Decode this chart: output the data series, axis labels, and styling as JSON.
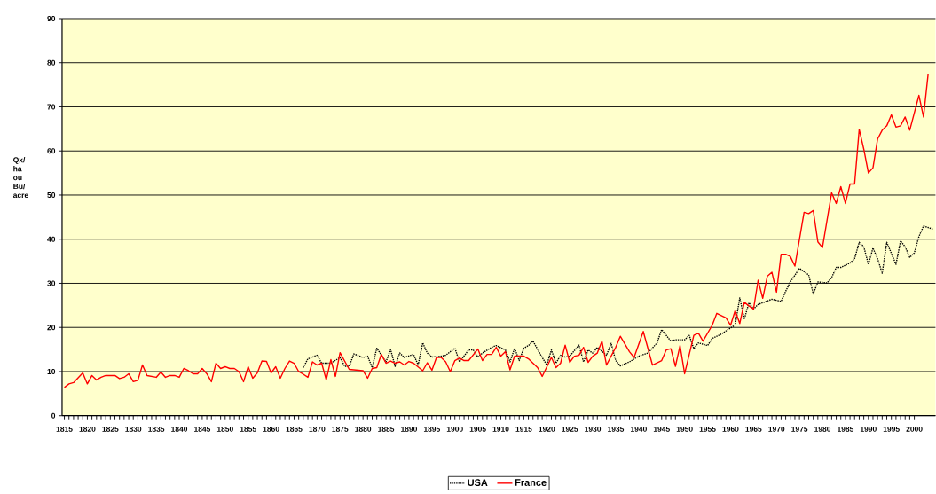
{
  "chart_data": {
    "type": "line",
    "ylabel": "Qx/ ha ou Bu/ acre",
    "xlim": [
      1814.5,
      2004.6
    ],
    "ylim": [
      0,
      90
    ],
    "xticks": [
      1815,
      1820,
      1825,
      1830,
      1835,
      1840,
      1845,
      1850,
      1855,
      1860,
      1865,
      1870,
      1875,
      1880,
      1885,
      1890,
      1895,
      1900,
      1905,
      1910,
      1915,
      1920,
      1925,
      1930,
      1935,
      1940,
      1945,
      1950,
      1955,
      1960,
      1965,
      1970,
      1975,
      1980,
      1985,
      1990,
      1995,
      2000
    ],
    "yticks": [
      0,
      10,
      20,
      30,
      40,
      50,
      60,
      70,
      80,
      90
    ],
    "grid": "y",
    "legend": "bottom",
    "series": [
      {
        "name": "USA",
        "color": "#000000",
        "line_style": "dotted",
        "x": [
          1867,
          1868,
          1870,
          1871,
          1873,
          1875,
          1876,
          1877,
          1878,
          1880,
          1881,
          1882,
          1883,
          1885,
          1886,
          1887,
          1888,
          1889,
          1891,
          1892,
          1893,
          1894,
          1895,
          1897,
          1898,
          1900,
          1901,
          1903,
          1904,
          1905,
          1906,
          1908,
          1909,
          1911,
          1912,
          1913,
          1914,
          1915,
          1916,
          1917,
          1919,
          1920,
          1921,
          1922,
          1923,
          1924,
          1925,
          1927,
          1928,
          1929,
          1930,
          1931,
          1933,
          1934,
          1935,
          1936,
          1938,
          1940,
          1942,
          1944,
          1945,
          1947,
          1948,
          1950,
          1951,
          1952,
          1953,
          1955,
          1956,
          1958,
          1960,
          1961,
          1962,
          1963,
          1964,
          1965,
          1966,
          1967,
          1969,
          1971,
          1972,
          1973,
          1975,
          1977,
          1978,
          1979,
          1981,
          1982,
          1983,
          1984,
          1986,
          1987,
          1988,
          1989,
          1990,
          1991,
          1992,
          1993,
          1994,
          1996,
          1997,
          1998,
          1999,
          2000,
          2001,
          2002,
          2004
        ],
        "values": [
          10.9,
          12.9,
          13.7,
          11.9,
          11.9,
          13.2,
          11.2,
          11.2,
          14.0,
          13.2,
          13.5,
          10.9,
          15.3,
          12.2,
          15.0,
          11.2,
          14.2,
          13.2,
          13.9,
          11.5,
          16.5,
          14.2,
          13.3,
          13.5,
          13.7,
          15.3,
          12.2,
          14.9,
          14.9,
          13.3,
          14.2,
          15.5,
          15.9,
          14.9,
          12.2,
          15.3,
          12.5,
          15.3,
          15.9,
          16.9,
          13.2,
          11.5,
          14.9,
          11.9,
          13.7,
          13.3,
          13.5,
          16.0,
          12.2,
          14.9,
          14.2,
          15.5,
          13.7,
          16.4,
          12.5,
          11.3,
          12.2,
          13.5,
          14.2,
          16.5,
          19.5,
          16.9,
          17.2,
          17.2,
          18.2,
          15.2,
          16.5,
          15.9,
          17.5,
          18.5,
          19.9,
          20.5,
          26.7,
          21.9,
          25.6,
          24.2,
          25.2,
          25.6,
          26.4,
          25.9,
          28.2,
          30.3,
          33.4,
          31.9,
          27.6,
          30.3,
          30.1,
          31.3,
          33.6,
          33.6,
          34.6,
          35.6,
          39.3,
          38.3,
          34.3,
          38.0,
          35.6,
          32.3,
          39.3,
          34.3,
          39.6,
          38.3,
          35.9,
          36.9,
          40.6,
          43.0,
          42.3
        ]
      },
      {
        "name": "France",
        "color": "#ff0000",
        "line_style": "solid",
        "x": [
          1815,
          1816,
          1817,
          1819,
          1820,
          1821,
          1822,
          1823,
          1824,
          1826,
          1827,
          1828,
          1829,
          1830,
          1831,
          1832,
          1833,
          1835,
          1836,
          1837,
          1838,
          1839,
          1840,
          1841,
          1842,
          1843,
          1844,
          1845,
          1846,
          1847,
          1848,
          1849,
          1850,
          1851,
          1852,
          1853,
          1854,
          1855,
          1856,
          1857,
          1858,
          1859,
          1860,
          1861,
          1862,
          1863,
          1864,
          1865,
          1866,
          1867,
          1868,
          1869,
          1870,
          1871,
          1872,
          1873,
          1874,
          1875,
          1877,
          1878,
          1880,
          1881,
          1882,
          1883,
          1884,
          1885,
          1886,
          1887,
          1888,
          1889,
          1890,
          1891,
          1893,
          1894,
          1895,
          1896,
          1897,
          1898,
          1899,
          1900,
          1901,
          1902,
          1903,
          1905,
          1906,
          1907,
          1908,
          1909,
          1910,
          1911,
          1912,
          1913,
          1915,
          1916,
          1918,
          1919,
          1921,
          1922,
          1923,
          1924,
          1925,
          1926,
          1927,
          1928,
          1929,
          1930,
          1931,
          1932,
          1933,
          1935,
          1936,
          1938,
          1939,
          1941,
          1943,
          1945,
          1946,
          1947,
          1948,
          1949,
          1950,
          1952,
          1953,
          1954,
          1956,
          1957,
          1959,
          1960,
          1961,
          1962,
          1963,
          1964,
          1965,
          1966,
          1967,
          1968,
          1969,
          1970,
          1971,
          1972,
          1973,
          1974,
          1976,
          1977,
          1978,
          1979,
          1980,
          1982,
          1983,
          1984,
          1985,
          1986,
          1987,
          1988,
          1989,
          1990,
          1991,
          1992,
          1993,
          1994,
          1995,
          1996,
          1997,
          1998,
          1999,
          2001,
          2002,
          2003
        ],
        "values": [
          6.4,
          7.2,
          7.5,
          9.7,
          7.2,
          9.1,
          8.1,
          8.7,
          9.1,
          9.1,
          8.4,
          8.7,
          9.5,
          7.7,
          8.0,
          11.5,
          9.1,
          8.7,
          9.9,
          8.7,
          9.1,
          9.1,
          8.7,
          10.7,
          10.2,
          9.5,
          9.5,
          10.7,
          9.5,
          7.7,
          11.9,
          10.7,
          11.1,
          10.7,
          10.7,
          10.0,
          7.7,
          11.1,
          8.5,
          9.7,
          12.4,
          12.3,
          9.7,
          11.1,
          8.5,
          10.7,
          12.4,
          11.9,
          10.0,
          9.4,
          8.7,
          12.2,
          11.5,
          11.9,
          8.1,
          12.7,
          8.9,
          14.3,
          10.5,
          10.4,
          10.2,
          8.5,
          10.7,
          10.9,
          13.9,
          11.9,
          12.4,
          11.9,
          12.2,
          11.5,
          12.3,
          11.9,
          10.2,
          12.0,
          10.3,
          13.2,
          13.2,
          12.2,
          10.0,
          12.5,
          13.1,
          12.5,
          12.5,
          15.1,
          12.5,
          13.9,
          13.9,
          15.5,
          13.5,
          14.5,
          10.4,
          13.5,
          13.5,
          12.9,
          10.9,
          8.9,
          13.2,
          10.9,
          11.9,
          16.0,
          12.1,
          13.5,
          13.7,
          15.5,
          12.1,
          13.5,
          14.2,
          16.9,
          11.5,
          15.5,
          18.0,
          14.5,
          13.2,
          19.1,
          11.5,
          12.5,
          14.9,
          15.2,
          11.2,
          15.9,
          9.5,
          18.2,
          18.7,
          16.9,
          20.5,
          23.2,
          22.2,
          20.5,
          23.8,
          20.9,
          25.7,
          24.9,
          24.2,
          30.7,
          26.6,
          31.6,
          32.5,
          28.0,
          36.6,
          36.6,
          36.1,
          33.9,
          46.1,
          45.8,
          46.5,
          39.4,
          38.1,
          50.5,
          48.1,
          51.9,
          48.1,
          52.5,
          52.5,
          64.9,
          60.4,
          55.0,
          56.2,
          62.7,
          64.7,
          65.7,
          68.2,
          65.4,
          65.7,
          67.7,
          64.7,
          72.6,
          67.7,
          77.4
        ]
      }
    ]
  }
}
